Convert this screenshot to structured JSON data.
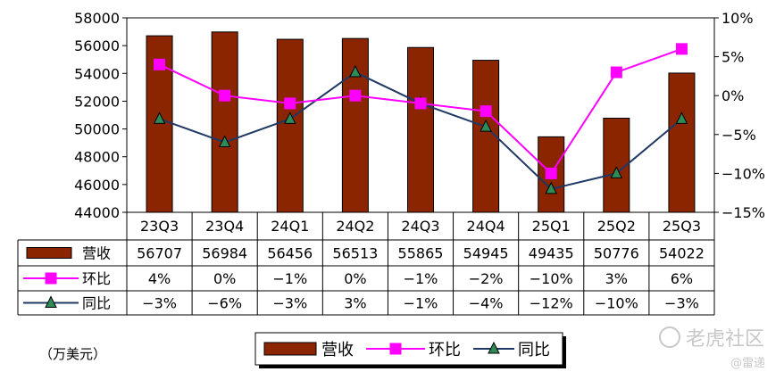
{
  "chart_data": {
    "type": "bar",
    "categories": [
      "23Q3",
      "23Q4",
      "24Q1",
      "24Q2",
      "24Q3",
      "24Q4",
      "25Q1",
      "25Q2",
      "25Q3"
    ],
    "series": [
      {
        "name": "营收",
        "type": "bar",
        "axis": "left",
        "values": [
          56707,
          56984,
          56456,
          56513,
          55865,
          54945,
          49435,
          50776,
          54022
        ],
        "labels": [
          "56707",
          "56984",
          "56456",
          "56513",
          "55865",
          "54945",
          "49435",
          "50776",
          "54022"
        ],
        "color": "#8B2500"
      },
      {
        "name": "环比",
        "type": "line",
        "axis": "right",
        "values": [
          4,
          0,
          -1,
          0,
          -1,
          -2,
          -10,
          3,
          6
        ],
        "labels": [
          "4%",
          "0%",
          "−1%",
          "0%",
          "−1%",
          "−2%",
          "−10%",
          "3%",
          "6%"
        ],
        "color": "#FF00FF"
      },
      {
        "name": "同比",
        "type": "line",
        "axis": "right",
        "values": [
          -3,
          -6,
          -3,
          3,
          -1,
          -4,
          -12,
          -10,
          -3
        ],
        "labels": [
          "−3%",
          "−6%",
          "−3%",
          "3%",
          "−1%",
          "−4%",
          "−12%",
          "−10%",
          "−3%"
        ],
        "color": "#1F3864"
      }
    ],
    "y_left": {
      "min": 44000,
      "max": 58000,
      "step": 2000,
      "ticks": [
        "44000",
        "46000",
        "48000",
        "50000",
        "52000",
        "54000",
        "56000",
        "58000"
      ]
    },
    "y_right": {
      "min": -15,
      "max": 10,
      "step": 5,
      "ticks": [
        "−15%",
        "−10%",
        "−5%",
        "0%",
        "5%",
        "10%"
      ]
    },
    "legend": {
      "position": "bottom-center",
      "items": [
        "营收",
        "环比",
        "同比"
      ]
    },
    "data_table": true,
    "grid": false
  },
  "unit_label": "（万美元）",
  "watermark": {
    "text": "老虎社区",
    "sub": "@雷递"
  }
}
